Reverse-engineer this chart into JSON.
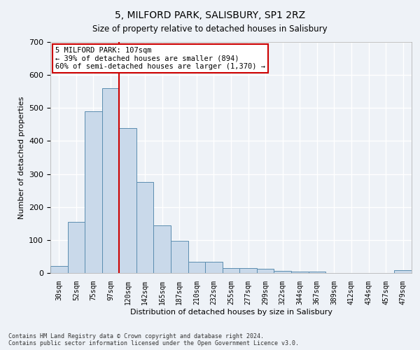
{
  "title": "5, MILFORD PARK, SALISBURY, SP1 2RZ",
  "subtitle": "Size of property relative to detached houses in Salisbury",
  "xlabel": "Distribution of detached houses by size in Salisbury",
  "ylabel": "Number of detached properties",
  "footer_line1": "Contains HM Land Registry data © Crown copyright and database right 2024.",
  "footer_line2": "Contains public sector information licensed under the Open Government Licence v3.0.",
  "bar_labels": [
    "30sqm",
    "52sqm",
    "75sqm",
    "97sqm",
    "120sqm",
    "142sqm",
    "165sqm",
    "187sqm",
    "210sqm",
    "232sqm",
    "255sqm",
    "277sqm",
    "299sqm",
    "322sqm",
    "344sqm",
    "367sqm",
    "389sqm",
    "412sqm",
    "434sqm",
    "457sqm",
    "479sqm"
  ],
  "bar_values": [
    22,
    155,
    490,
    560,
    440,
    275,
    145,
    98,
    35,
    33,
    15,
    15,
    12,
    6,
    5,
    5,
    0,
    0,
    0,
    0,
    8
  ],
  "bar_color": "#c9d9ea",
  "bar_edgecolor": "#5b8db0",
  "background_color": "#eef2f7",
  "grid_color": "#ffffff",
  "annotation_text1": "5 MILFORD PARK: 107sqm",
  "annotation_text2": "← 39% of detached houses are smaller (894)",
  "annotation_text3": "60% of semi-detached houses are larger (1,370) →",
  "annotation_box_color": "#ffffff",
  "annotation_border_color": "#cc0000",
  "vline_color": "#cc0000",
  "vline_x_index": 3.5,
  "ylim": [
    0,
    700
  ],
  "yticks": [
    0,
    100,
    200,
    300,
    400,
    500,
    600,
    700
  ]
}
